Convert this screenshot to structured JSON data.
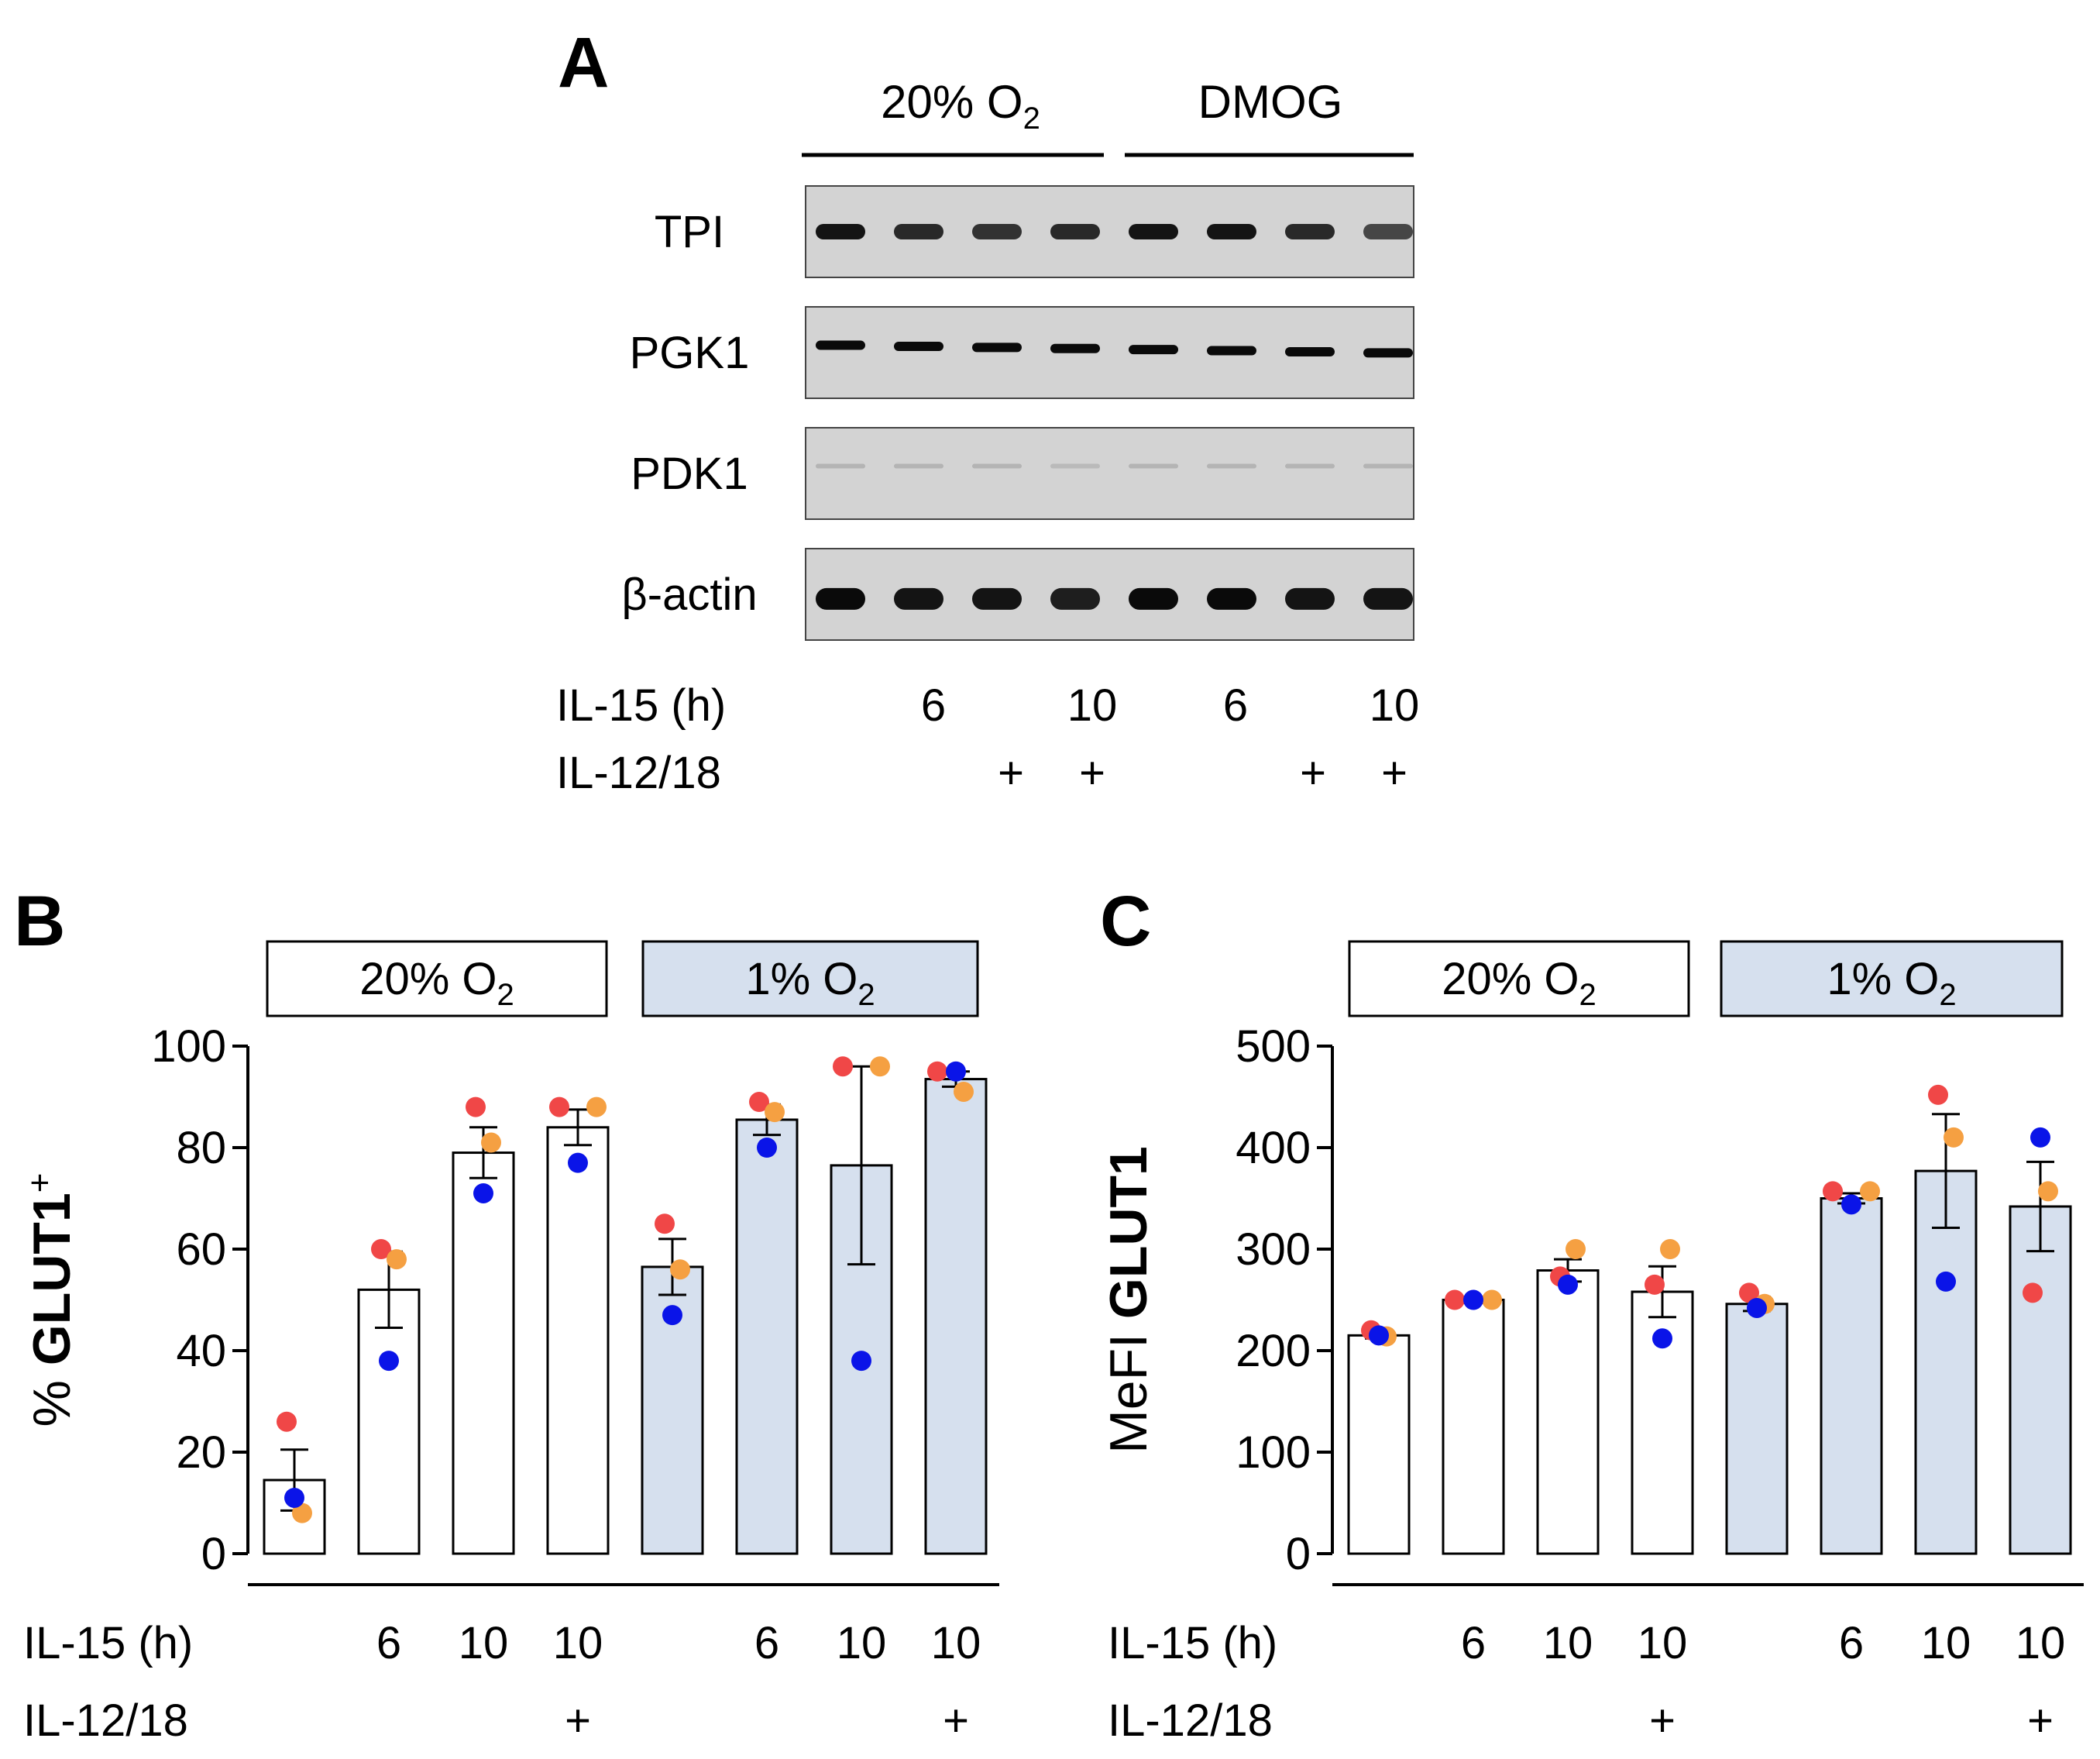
{
  "panel_a": {
    "letter": "A",
    "group_labels": [
      {
        "text": "20% O",
        "sub": "2"
      },
      {
        "text": "DMOG",
        "sub": ""
      }
    ],
    "blots": [
      {
        "label": "TPI",
        "intensity": [
          0.95,
          0.85,
          0.8,
          0.85,
          0.95,
          0.95,
          0.85,
          0.7
        ],
        "band": "thick"
      },
      {
        "label": "PGK1",
        "intensity": [
          1,
          1,
          1,
          1,
          1,
          1,
          1,
          1
        ],
        "band": "thin"
      },
      {
        "label": "PDK1",
        "intensity": [
          0.15,
          0.15,
          0.15,
          0.12,
          0.15,
          0.15,
          0.15,
          0.15
        ],
        "band": "faint"
      },
      {
        "label": "β-actin",
        "intensity": [
          1,
          0.95,
          0.95,
          0.9,
          1,
          1,
          0.95,
          0.95
        ],
        "band": "fat"
      }
    ],
    "row_label_il15": "IL-15 (h)",
    "row_label_il1218": "IL-12/18",
    "il15": [
      "",
      "6",
      "",
      "10",
      "",
      "6",
      "",
      "10"
    ],
    "il1218": [
      "",
      "",
      "+",
      "+",
      "",
      "",
      "+",
      "+"
    ]
  },
  "chart_data": [
    {
      "panel": "B",
      "type": "bar",
      "ylabel": "% GLUT1",
      "ylabel_sup": "+",
      "ylim": [
        0,
        100
      ],
      "yticks": [
        "0",
        "20",
        "40",
        "60",
        "80",
        "100"
      ],
      "group_boxes": [
        {
          "text": "20% O",
          "sub": "2",
          "fill": "#ffffff"
        },
        {
          "text": "1% O",
          "sub": "2",
          "fill": "#d6e0ee"
        }
      ],
      "categories": [
        "20% O2 ctrl",
        "20% O2 IL-15 6h",
        "20% O2 IL-15 10h",
        "20% O2 IL-15 10h + IL-12/18",
        "1% O2 ctrl",
        "1% O2 IL-15 6h",
        "1% O2 IL-15 10h",
        "1% O2 IL-15 10h + IL-12/18"
      ],
      "values": [
        14.5,
        52,
        79,
        84,
        56.5,
        85.5,
        76.5,
        93.5
      ],
      "sem": [
        6,
        7.5,
        5,
        3.5,
        5.5,
        3,
        19.5,
        1.5
      ],
      "points": [
        [
          26,
          8,
          11
        ],
        [
          60,
          58,
          38
        ],
        [
          88,
          81,
          71
        ],
        [
          88,
          88,
          77
        ],
        [
          65,
          56,
          47
        ],
        [
          89,
          87,
          80
        ],
        [
          96,
          96,
          38
        ],
        [
          95,
          91,
          95
        ]
      ],
      "row_label_il15": "IL-15 (h)",
      "row_label_il1218": "IL-12/18",
      "il15": [
        "",
        "6",
        "10",
        "10",
        "",
        "6",
        "10",
        "10"
      ],
      "il1218": [
        "",
        "",
        "",
        "+",
        "",
        "",
        "",
        "+"
      ]
    },
    {
      "panel": "C",
      "type": "bar",
      "ylabel": "MeFI GLUT1",
      "ylabel_sup": "",
      "ylim": [
        0,
        500
      ],
      "yticks": [
        "0",
        "100",
        "200",
        "300",
        "400",
        "500"
      ],
      "group_boxes": [
        {
          "text": "20% O",
          "sub": "2",
          "fill": "#ffffff"
        },
        {
          "text": "1% O",
          "sub": "2",
          "fill": "#d6e0ee"
        }
      ],
      "categories": [
        "20% O2 ctrl",
        "20% O2 IL-15 6h",
        "20% O2 IL-15 10h",
        "20% O2 IL-15 10h + IL-12/18",
        "1% O2 ctrl",
        "1% O2 IL-15 6h",
        "1% O2 IL-15 10h",
        "1% O2 IL-15 10h + IL-12/18"
      ],
      "values": [
        215,
        250,
        279,
        258,
        246,
        350,
        377,
        342
      ],
      "sem": [
        3,
        3,
        11,
        25,
        7,
        5,
        56,
        44
      ],
      "points": [
        [
          220,
          214,
          215
        ],
        [
          250,
          250,
          250
        ],
        [
          273,
          300,
          265
        ],
        [
          265,
          300,
          212
        ],
        [
          257,
          246,
          242
        ],
        [
          357,
          357,
          344
        ],
        [
          452,
          410,
          268
        ],
        [
          257,
          357,
          410
        ]
      ],
      "row_label_il15": "IL-15 (h)",
      "row_label_il1218": "IL-12/18",
      "il15": [
        "",
        "6",
        "10",
        "10",
        "",
        "6",
        "10",
        "10"
      ],
      "il1218": [
        "",
        "",
        "",
        "+",
        "",
        "",
        "",
        "+"
      ]
    }
  ],
  "colors": {
    "donor_1": "#f04747",
    "donor_2": "#f5a042",
    "donor_3": "#0a14e8",
    "bar_normoxia": "#ffffff",
    "bar_hypoxia": "#d6e0ee",
    "ink": "#000000"
  }
}
